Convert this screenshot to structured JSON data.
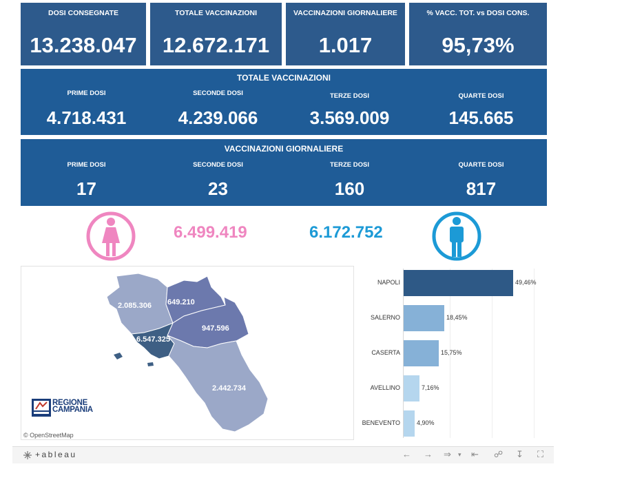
{
  "kpis": [
    {
      "label": "DOSI  CONSEGNATE",
      "value": "13.238.047"
    },
    {
      "label": "TOTALE VACCINAZIONI",
      "value": "12.672.171"
    },
    {
      "label": "VACCINAZIONI GIORNALIERE",
      "value": "1.017"
    },
    {
      "label": "% VACC. TOT. vs DOSI CONS.",
      "value": "95,73%"
    }
  ],
  "totale": {
    "title": "TOTALE VACCINAZIONI",
    "items": [
      {
        "label": "PRIME DOSI",
        "value": "4.718.431"
      },
      {
        "label": "SECONDE DOSI",
        "value": "4.239.066"
      },
      {
        "label": "TERZE DOSI",
        "value": "3.569.009"
      },
      {
        "label": "QUARTE DOSI",
        "value": "145.665"
      }
    ]
  },
  "giornaliere": {
    "title": "VACCINAZIONI GIORNALIERE",
    "items": [
      {
        "label": "PRIME DOSI",
        "value": "17"
      },
      {
        "label": "SECONDE DOSI",
        "value": "23"
      },
      {
        "label": "TERZE DOSI",
        "value": "160"
      },
      {
        "label": "QUARTE DOSI",
        "value": "817"
      }
    ]
  },
  "gender": {
    "female_value": "6.499.419",
    "male_value": "6.172.752",
    "female_color": "#ef86c0",
    "male_color": "#1c9ad6",
    "female_icon": "female-person-icon",
    "male_icon": "male-person-icon"
  },
  "map": {
    "provinces": [
      {
        "name": "caserta",
        "value": "2.085.306"
      },
      {
        "name": "benevento",
        "value": "649.210"
      },
      {
        "name": "avellino",
        "value": "947.596"
      },
      {
        "name": "napoli",
        "value": "6.547.325"
      },
      {
        "name": "salerno",
        "value": "2.442.734"
      }
    ],
    "attribution": "© OpenStreetMap",
    "logo": {
      "line1": "REGIONE",
      "line2": "CAMPANIA"
    }
  },
  "chart_data": {
    "type": "bar",
    "orientation": "horizontal",
    "categories": [
      "NAPOLI",
      "SALERNO",
      "CASERTA",
      "AVELLINO",
      "BENEVENTO"
    ],
    "values": [
      49.46,
      18.45,
      15.75,
      7.16,
      4.9
    ],
    "labels": [
      "49,46%",
      "18,45%",
      "15,75%",
      "7,16%",
      "4,90%"
    ],
    "colors": [
      "#2e5986",
      "#86b1d7",
      "#86b1d7",
      "#b5d6ee",
      "#b5d6ee"
    ]
  },
  "footer": {
    "brand": "+ableau",
    "tools": [
      "undo-icon",
      "redo-icon",
      "revert-icon",
      "reset-icon",
      "share-icon",
      "download-icon",
      "fullscreen-icon"
    ]
  }
}
